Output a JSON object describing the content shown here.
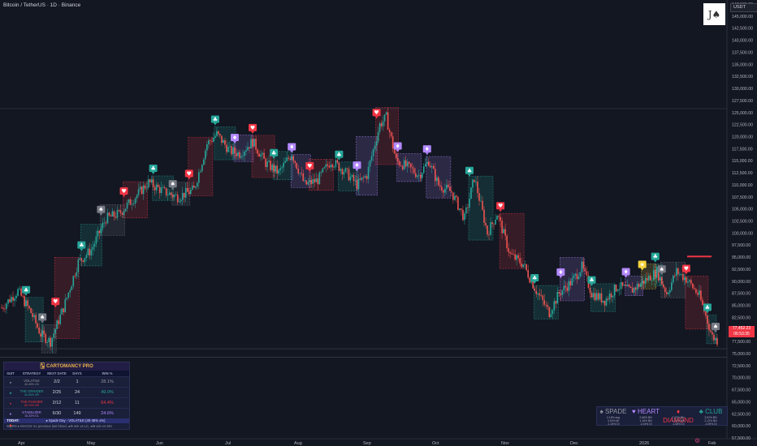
{
  "header": {
    "title": "Bitcoin / TetherUS · 1D · Binance"
  },
  "logo": {
    "text": "J♠"
  },
  "currency_label": "USDT",
  "last_price": {
    "value": "77,452.23",
    "countdown": "06:53:35"
  },
  "chart_data": {
    "type": "candlestick",
    "x_labels": [
      "Apr",
      "May",
      "Jun",
      "Jul",
      "Aug",
      "Sep",
      "Oct",
      "Nov",
      "Dec",
      "2026",
      "Feb"
    ],
    "y_ticks": [
      "147,500.00",
      "145,000.00",
      "142,500.00",
      "140,000.00",
      "137,500.00",
      "135,000.00",
      "132,500.00",
      "130,000.00",
      "127,500.00",
      "125,000.00",
      "122,500.00",
      "120,000.00",
      "117,500.00",
      "115,000.00",
      "112,500.00",
      "110,000.00",
      "107,500.00",
      "105,000.00",
      "102,500.00",
      "100,000.00",
      "97,500.00",
      "95,000.00",
      "92,500.00",
      "90,000.00",
      "87,500.00",
      "85,000.00",
      "82,500.00",
      "80,000.00",
      "77,500.00",
      "75,000.00",
      "72,500.00",
      "70,000.00",
      "67,500.00",
      "65,000.00",
      "62,500.00",
      "60,000.00",
      "57,500.00"
    ],
    "ylim": [
      57500,
      147500
    ],
    "anchors": [
      [
        0,
        84500
      ],
      [
        10,
        88000
      ],
      [
        18,
        83500
      ],
      [
        24,
        79000
      ],
      [
        30,
        77500
      ],
      [
        38,
        84500
      ],
      [
        47,
        94000
      ],
      [
        55,
        96500
      ],
      [
        64,
        103000
      ],
      [
        72,
        104000
      ],
      [
        82,
        107500
      ],
      [
        90,
        110500
      ],
      [
        100,
        108500
      ],
      [
        108,
        107500
      ],
      [
        118,
        109000
      ],
      [
        126,
        118500
      ],
      [
        132,
        120500
      ],
      [
        140,
        117000
      ],
      [
        146,
        116500
      ],
      [
        154,
        119000
      ],
      [
        162,
        114500
      ],
      [
        170,
        112500
      ],
      [
        178,
        116500
      ],
      [
        186,
        110000
      ],
      [
        194,
        111000
      ],
      [
        202,
        115000
      ],
      [
        210,
        113000
      ],
      [
        218,
        110000
      ],
      [
        224,
        112000
      ],
      [
        232,
        122500
      ],
      [
        236,
        124000
      ],
      [
        242,
        115000
      ],
      [
        250,
        113500
      ],
      [
        256,
        112000
      ],
      [
        262,
        115000
      ],
      [
        268,
        110000
      ],
      [
        276,
        108500
      ],
      [
        284,
        103000
      ],
      [
        290,
        111500
      ],
      [
        298,
        100000
      ],
      [
        304,
        104000
      ],
      [
        312,
        95500
      ],
      [
        320,
        93500
      ],
      [
        328,
        88000
      ],
      [
        336,
        83500
      ],
      [
        342,
        87500
      ],
      [
        350,
        90000
      ],
      [
        356,
        93000
      ],
      [
        362,
        87500
      ],
      [
        370,
        86000
      ],
      [
        378,
        89000
      ],
      [
        386,
        88000
      ],
      [
        394,
        90000
      ],
      [
        402,
        92000
      ],
      [
        408,
        87500
      ],
      [
        414,
        92000
      ],
      [
        420,
        90500
      ],
      [
        428,
        87000
      ],
      [
        436,
        78500
      ],
      [
        440,
        77450
      ]
    ],
    "markers": [
      {
        "suit": "club",
        "x": 15
      },
      {
        "suit": "spade",
        "x": 25
      },
      {
        "suit": "heart",
        "x": 33
      },
      {
        "suit": "club",
        "x": 49
      },
      {
        "suit": "spade",
        "x": 61
      },
      {
        "suit": "heart",
        "x": 75
      },
      {
        "suit": "club",
        "x": 93
      },
      {
        "suit": "spade",
        "x": 105
      },
      {
        "suit": "heart",
        "x": 115
      },
      {
        "suit": "club",
        "x": 131
      },
      {
        "suit": "diamond",
        "x": 143
      },
      {
        "suit": "heart",
        "x": 154
      },
      {
        "suit": "club",
        "x": 167
      },
      {
        "suit": "diamond",
        "x": 178
      },
      {
        "suit": "heart",
        "x": 189
      },
      {
        "suit": "club",
        "x": 207
      },
      {
        "suit": "diamond",
        "x": 218
      },
      {
        "suit": "heart",
        "x": 230
      },
      {
        "suit": "diamond",
        "x": 243
      },
      {
        "suit": "diamond",
        "x": 261
      },
      {
        "suit": "club",
        "x": 287
      },
      {
        "suit": "heart",
        "x": 306
      },
      {
        "suit": "club",
        "x": 327
      },
      {
        "suit": "diamond",
        "x": 343
      },
      {
        "suit": "club",
        "x": 362
      },
      {
        "suit": "diamond",
        "x": 383
      },
      {
        "suit": "joker",
        "x": 393
      },
      {
        "suit": "club",
        "x": 401
      },
      {
        "suit": "spade",
        "x": 405
      },
      {
        "suit": "heart",
        "x": 420
      },
      {
        "suit": "club",
        "x": 433
      },
      {
        "suit": "spade",
        "x": 438
      }
    ]
  },
  "table": {
    "title": "🂡 CARTOMANCY PRO",
    "headers": [
      "SUIT",
      "STRATEGY",
      "NEXT DATE",
      "DAYS",
      "WIN %"
    ],
    "rows": [
      {
        "icon": "♠",
        "name": "VOLATILE",
        "sub": "40-45% ±%",
        "date": "2/2",
        "days": "1",
        "win": "28.1%",
        "color": "#9598a1"
      },
      {
        "icon": "♣",
        "name": "THE GRINDER",
        "sub": "40-50% HR",
        "date": "2/25",
        "days": "24",
        "win": "49.0%",
        "color": "#26a69a"
      },
      {
        "icon": "♦",
        "name": "THE PUSHER",
        "sub": "60-70% HR",
        "date": "2/12",
        "days": "11",
        "win": "64.4%",
        "color": "#f23645"
      },
      {
        "icon": "♥",
        "name": "STABILIZER",
        "sub": "15-33% GL",
        "date": "6/30",
        "days": "149",
        "win": "24.6%",
        "color": "#b388ff"
      }
    ],
    "today_label": "TODAY:",
    "today_value": "♠ Spade Day - VOLATILE (40-45% ±%)",
    "note": "WARN ♦ MACD2 no previous last blood, ♠/♥ win vs LC, ♠/♥ win vs MH"
  },
  "suits_legend": {
    "items": [
      {
        "label": "♠ SPADE",
        "color": "#9598a1",
        "stats": [
          "2.16% avg",
          "3.15% MI",
          "-1.15% DI"
        ]
      },
      {
        "label": "♥ HEART",
        "color": "#b388ff",
        "stats": [
          "2.68% BN",
          "1.16% BN",
          "-1.04% DI"
        ]
      },
      {
        "label": "♦ DIAMOND",
        "color": "#f23645",
        "stats": [
          "2.32% BN",
          "1.12% BN",
          "-1.06% DI"
        ]
      },
      {
        "label": "♣ CLUB",
        "color": "#26a69a",
        "stats": [
          "3.92% BN",
          "2.12% BN",
          "-1.09% DI"
        ]
      }
    ]
  }
}
